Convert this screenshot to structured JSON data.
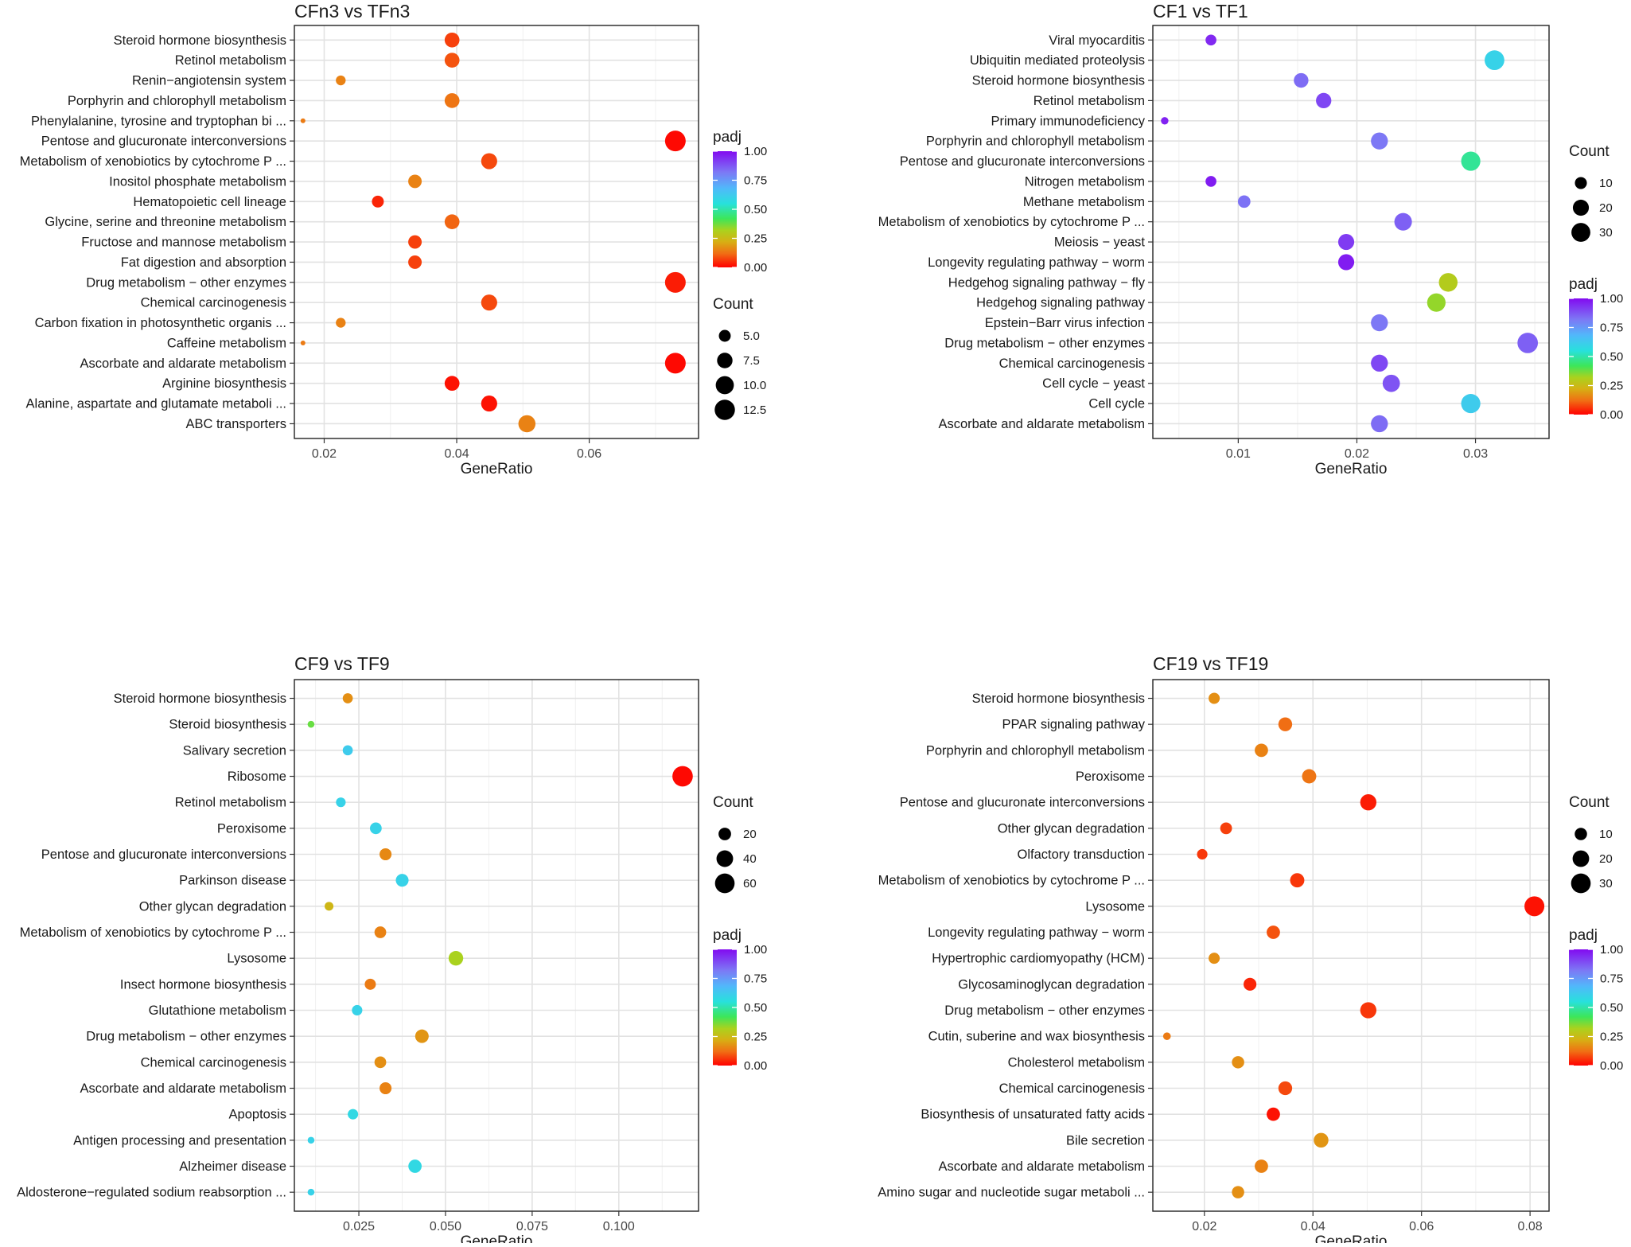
{
  "chart_data": [
    {
      "type": "scatter",
      "title": "CFn3 vs TFn3",
      "xlabel": "GeneRatio",
      "ylabel": "",
      "xlim": [
        0.0155,
        0.0765
      ],
      "xticks": [
        0.02,
        0.04,
        0.06
      ],
      "xtick_labels": [
        "0.02",
        "0.04",
        "0.06"
      ],
      "grid": true,
      "legend_order": [
        "color",
        "size"
      ],
      "size_legend": {
        "title": "Count",
        "values": [
          5.0,
          7.5,
          10.0,
          12.5
        ],
        "labels": [
          "5.0",
          "7.5",
          "10.0",
          "12.5"
        ],
        "domain": [
          3,
          13
        ]
      },
      "color_legend": {
        "title": "padj",
        "ticks": [
          1.0,
          0.75,
          0.5,
          0.25,
          0.0
        ],
        "labels": [
          "1.00",
          "0.75",
          "0.50",
          "0.25",
          "0.00"
        ]
      },
      "categories": [
        "Steroid hormone biosynthesis",
        "Retinol metabolism",
        "Renin−angiotensin system",
        "Porphyrin and chlorophyll metabolism",
        "Phenylalanine, tyrosine and tryptophan bi ...",
        "Pentose and glucuronate interconversions",
        "Metabolism of xenobiotics by cytochrome P ...",
        "Inositol phosphate metabolism",
        "Hematopoietic cell lineage",
        "Glycine, serine and threonine metabolism",
        "Fructose and mannose metabolism",
        "Fat digestion and absorption",
        "Drug metabolism − other enzymes",
        "Chemical carcinogenesis",
        "Carbon fixation in photosynthetic organis ...",
        "Caffeine metabolism",
        "Ascorbate and aldarate metabolism",
        "Arginine biosynthesis",
        "Alanine, aspartate and glutamate metaboli ...",
        "ABC transporters"
      ],
      "points": [
        {
          "label": "Steroid hormone biosynthesis",
          "x": 0.0393,
          "count": 7,
          "padj": 0.07
        },
        {
          "label": "Retinol metabolism",
          "x": 0.0393,
          "count": 7,
          "padj": 0.09
        },
        {
          "label": "Renin−angiotensin system",
          "x": 0.0225,
          "count": 4,
          "padj": 0.15
        },
        {
          "label": "Porphyrin and chlorophyll metabolism",
          "x": 0.0393,
          "count": 7,
          "padj": 0.13
        },
        {
          "label": "Phenylalanine, tyrosine and tryptophan bi ...",
          "x": 0.0168,
          "count": 3,
          "padj": 0.14
        },
        {
          "label": "Pentose and glucuronate interconversions",
          "x": 0.073,
          "count": 13,
          "padj": 0.01
        },
        {
          "label": "Metabolism of xenobiotics by cytochrome P ...",
          "x": 0.0449,
          "count": 8,
          "padj": 0.08
        },
        {
          "label": "Inositol phosphate metabolism",
          "x": 0.0337,
          "count": 6,
          "padj": 0.15
        },
        {
          "label": "Hematopoietic cell lineage",
          "x": 0.0281,
          "count": 5,
          "padj": 0.04
        },
        {
          "label": "Glycine, serine and threonine metabolism",
          "x": 0.0393,
          "count": 7,
          "padj": 0.11
        },
        {
          "label": "Fructose and mannose metabolism",
          "x": 0.0337,
          "count": 6,
          "padj": 0.07
        },
        {
          "label": "Fat digestion and absorption",
          "x": 0.0337,
          "count": 6,
          "padj": 0.07
        },
        {
          "label": "Drug metabolism − other enzymes",
          "x": 0.073,
          "count": 13,
          "padj": 0.03
        },
        {
          "label": "Chemical carcinogenesis",
          "x": 0.0449,
          "count": 8,
          "padj": 0.08
        },
        {
          "label": "Carbon fixation in photosynthetic organis ...",
          "x": 0.0225,
          "count": 4,
          "padj": 0.15
        },
        {
          "label": "Caffeine metabolism",
          "x": 0.0168,
          "count": 3,
          "padj": 0.14
        },
        {
          "label": "Ascorbate and aldarate metabolism",
          "x": 0.073,
          "count": 13,
          "padj": 0.01
        },
        {
          "label": "Arginine biosynthesis",
          "x": 0.0393,
          "count": 7,
          "padj": 0.02
        },
        {
          "label": "Alanine, aspartate and glutamate metaboli ...",
          "x": 0.0449,
          "count": 8,
          "padj": 0.02
        },
        {
          "label": "ABC transporters",
          "x": 0.0506,
          "count": 9,
          "padj": 0.15
        }
      ]
    },
    {
      "type": "scatter",
      "title": "CF1 vs TF1",
      "xlabel": "GeneRatio",
      "ylabel": "",
      "xlim": [
        0.0028,
        0.0362
      ],
      "xticks": [
        0.01,
        0.02,
        0.03
      ],
      "xtick_labels": [
        "0.01",
        "0.02",
        "0.03"
      ],
      "grid": true,
      "legend_order": [
        "size",
        "color"
      ],
      "size_legend": {
        "title": "Count",
        "values": [
          10,
          20,
          30
        ],
        "labels": [
          "10",
          "20",
          "30"
        ],
        "domain": [
          3,
          37
        ]
      },
      "color_legend": {
        "title": "padj",
        "ticks": [
          1.0,
          0.75,
          0.5,
          0.25,
          0.0
        ],
        "labels": [
          "1.00",
          "0.75",
          "0.50",
          "0.25",
          "0.00"
        ]
      },
      "categories": [
        "Viral myocarditis",
        "Ubiquitin mediated proteolysis",
        "Steroid hormone biosynthesis",
        "Retinol metabolism",
        "Primary immunodeficiency",
        "Porphyrin and chlorophyll metabolism",
        "Pentose and glucuronate interconversions",
        "Nitrogen metabolism",
        "Methane metabolism",
        "Metabolism of xenobiotics by cytochrome P ...",
        "Meiosis − yeast",
        "Longevity regulating pathway − worm",
        "Hedgehog signaling pathway − fly",
        "Hedgehog signaling pathway",
        "Epstein−Barr virus infection",
        "Drug metabolism − other enzymes",
        "Chemical carcinogenesis",
        "Cell cycle − yeast",
        "Cell cycle",
        "Ascorbate and aldarate metabolism"
      ],
      "points": [
        {
          "label": "Viral myocarditis",
          "x": 0.0077,
          "count": 8,
          "padj": 0.95
        },
        {
          "label": "Ubiquitin mediated proteolysis",
          "x": 0.0316,
          "count": 33,
          "padj": 0.6
        },
        {
          "label": "Steroid hormone biosynthesis",
          "x": 0.0153,
          "count": 16,
          "padj": 0.84
        },
        {
          "label": "Retinol metabolism",
          "x": 0.0172,
          "count": 18,
          "padj": 0.9
        },
        {
          "label": "Primary immunodeficiency",
          "x": 0.0038,
          "count": 4,
          "padj": 0.96
        },
        {
          "label": "Porphyrin and chlorophyll metabolism",
          "x": 0.0219,
          "count": 23,
          "padj": 0.82
        },
        {
          "label": "Pentose and glucuronate interconversions",
          "x": 0.0296,
          "count": 31,
          "padj": 0.48
        },
        {
          "label": "Nitrogen metabolism",
          "x": 0.0077,
          "count": 8,
          "padj": 0.97
        },
        {
          "label": "Methane metabolism",
          "x": 0.0105,
          "count": 11,
          "padj": 0.83
        },
        {
          "label": "Metabolism of xenobiotics by cytochrome P ...",
          "x": 0.0239,
          "count": 25,
          "padj": 0.86
        },
        {
          "label": "Meiosis − yeast",
          "x": 0.0191,
          "count": 20,
          "padj": 0.92
        },
        {
          "label": "Longevity regulating pathway − worm",
          "x": 0.0191,
          "count": 20,
          "padj": 0.97
        },
        {
          "label": "Hedgehog signaling pathway − fly",
          "x": 0.0277,
          "count": 29,
          "padj": 0.3
        },
        {
          "label": "Hedgehog signaling pathway",
          "x": 0.0267,
          "count": 28,
          "padj": 0.34
        },
        {
          "label": "Epstein−Barr virus infection",
          "x": 0.0219,
          "count": 23,
          "padj": 0.82
        },
        {
          "label": "Drug metabolism − other enzymes",
          "x": 0.0344,
          "count": 36,
          "padj": 0.86
        },
        {
          "label": "Chemical carcinogenesis",
          "x": 0.0219,
          "count": 23,
          "padj": 0.9
        },
        {
          "label": "Cell cycle − yeast",
          "x": 0.0229,
          "count": 24,
          "padj": 0.88
        },
        {
          "label": "Cell cycle",
          "x": 0.0296,
          "count": 31,
          "padj": 0.62
        },
        {
          "label": "Ascorbate and aldarate metabolism",
          "x": 0.0219,
          "count": 23,
          "padj": 0.84
        }
      ]
    },
    {
      "type": "scatter",
      "title": "CF9 vs TF9",
      "xlabel": "GeneRatio",
      "ylabel": "",
      "xlim": [
        0.0064,
        0.123
      ],
      "xticks": [
        0.025,
        0.05,
        0.075,
        0.1
      ],
      "xtick_labels": [
        "0.025",
        "0.050",
        "0.075",
        "0.100"
      ],
      "grid": true,
      "legend_order": [
        "size",
        "color"
      ],
      "size_legend": {
        "title": "Count",
        "values": [
          20,
          40,
          60
        ],
        "labels": [
          "20",
          "40",
          "60"
        ],
        "domain": [
          5,
          68
        ]
      },
      "color_legend": {
        "title": "padj",
        "ticks": [
          1.0,
          0.75,
          0.5,
          0.25,
          0.0
        ],
        "labels": [
          "1.00",
          "0.75",
          "0.50",
          "0.25",
          "0.00"
        ]
      },
      "categories": [
        "Steroid hormone biosynthesis",
        "Steroid biosynthesis",
        "Salivary secretion",
        "Ribosome",
        "Retinol metabolism",
        "Peroxisome",
        "Pentose and glucuronate interconversions",
        "Parkinson disease",
        "Other glycan degradation",
        "Metabolism of xenobiotics by cytochrome P ...",
        "Lysosome",
        "Insect hormone biosynthesis",
        "Glutathione metabolism",
        "Drug metabolism − other enzymes",
        "Chemical carcinogenesis",
        "Ascorbate and aldarate metabolism",
        "Apoptosis",
        "Antigen processing and presentation",
        "Alzheimer disease",
        "Aldosterone−regulated sodium reabsorption ..."
      ],
      "points": [
        {
          "label": "Steroid hormone biosynthesis",
          "x": 0.0218,
          "count": 12,
          "padj": 0.17
        },
        {
          "label": "Steroid biosynthesis",
          "x": 0.0112,
          "count": 6,
          "padj": 0.38
        },
        {
          "label": "Salivary secretion",
          "x": 0.0218,
          "count": 12,
          "padj": 0.62
        },
        {
          "label": "Ribosome",
          "x": 0.1184,
          "count": 66,
          "padj": 0.01
        },
        {
          "label": "Retinol metabolism",
          "x": 0.0198,
          "count": 11,
          "padj": 0.6
        },
        {
          "label": "Peroxisome",
          "x": 0.0299,
          "count": 17,
          "padj": 0.6
        },
        {
          "label": "Pentose and glucuronate interconversions",
          "x": 0.0327,
          "count": 18,
          "padj": 0.16
        },
        {
          "label": "Parkinson disease",
          "x": 0.0375,
          "count": 21,
          "padj": 0.6
        },
        {
          "label": "Other glycan degradation",
          "x": 0.0164,
          "count": 9,
          "padj": 0.24
        },
        {
          "label": "Metabolism of xenobiotics by cytochrome P ...",
          "x": 0.0312,
          "count": 17,
          "padj": 0.15
        },
        {
          "label": "Lysosome",
          "x": 0.053,
          "count": 29,
          "padj": 0.32
        },
        {
          "label": "Insect hormone biosynthesis",
          "x": 0.0283,
          "count": 15,
          "padj": 0.14
        },
        {
          "label": "Glutathione metabolism",
          "x": 0.0245,
          "count": 13,
          "padj": 0.6
        },
        {
          "label": "Drug metabolism − other enzymes",
          "x": 0.0432,
          "count": 24,
          "padj": 0.18
        },
        {
          "label": "Chemical carcinogenesis",
          "x": 0.0312,
          "count": 17,
          "padj": 0.17
        },
        {
          "label": "Ascorbate and aldarate metabolism",
          "x": 0.0327,
          "count": 18,
          "padj": 0.15
        },
        {
          "label": "Apoptosis",
          "x": 0.0233,
          "count": 13,
          "padj": 0.58
        },
        {
          "label": "Antigen processing and presentation",
          "x": 0.0112,
          "count": 6,
          "padj": 0.6
        },
        {
          "label": "Alzheimer disease",
          "x": 0.0412,
          "count": 23,
          "padj": 0.58
        },
        {
          "label": "Aldosterone−regulated sodium reabsorption ...",
          "x": 0.0112,
          "count": 6,
          "padj": 0.6
        }
      ]
    },
    {
      "type": "scatter",
      "title": "CF19 vs TF19",
      "xlabel": "GeneRatio",
      "ylabel": "",
      "xlim": [
        0.0105,
        0.0835
      ],
      "xticks": [
        0.02,
        0.04,
        0.06,
        0.08
      ],
      "xtick_labels": [
        "0.02",
        "0.04",
        "0.06",
        "0.08"
      ],
      "grid": true,
      "legend_order": [
        "size",
        "color"
      ],
      "size_legend": {
        "title": "Count",
        "values": [
          10,
          20,
          30
        ],
        "labels": [
          "10",
          "20",
          "30"
        ],
        "domain": [
          3,
          34
        ]
      },
      "color_legend": {
        "title": "padj",
        "ticks": [
          1.0,
          0.75,
          0.5,
          0.25,
          0.0
        ],
        "labels": [
          "1.00",
          "0.75",
          "0.50",
          "0.25",
          "0.00"
        ]
      },
      "categories": [
        "Steroid hormone biosynthesis",
        "PPAR signaling pathway",
        "Porphyrin and chlorophyll metabolism",
        "Peroxisome",
        "Pentose and glucuronate interconversions",
        "Other glycan degradation",
        "Olfactory transduction",
        "Metabolism of xenobiotics by cytochrome P ...",
        "Lysosome",
        "Longevity regulating pathway − worm",
        "Hypertrophic cardiomyopathy (HCM)",
        "Glycosaminoglycan degradation",
        "Drug metabolism − other enzymes",
        "Cutin, suberine and wax biosynthesis",
        "Cholesterol metabolism",
        "Chemical carcinogenesis",
        "Biosynthesis of unsaturated fatty acids",
        "Bile secretion",
        "Ascorbate and aldarate metabolism",
        "Amino sugar and nucleotide sugar metaboli ..."
      ],
      "points": [
        {
          "label": "Steroid hormone biosynthesis",
          "x": 0.0218,
          "count": 8,
          "padj": 0.17
        },
        {
          "label": "PPAR signaling pathway",
          "x": 0.0349,
          "count": 13,
          "padj": 0.12
        },
        {
          "label": "Porphyrin and chlorophyll metabolism",
          "x": 0.0305,
          "count": 12,
          "padj": 0.15
        },
        {
          "label": "Peroxisome",
          "x": 0.0393,
          "count": 14,
          "padj": 0.13
        },
        {
          "label": "Pentose and glucuronate interconversions",
          "x": 0.0502,
          "count": 19,
          "padj": 0.03
        },
        {
          "label": "Other glycan degradation",
          "x": 0.024,
          "count": 9,
          "padj": 0.07
        },
        {
          "label": "Olfactory transduction",
          "x": 0.0196,
          "count": 7,
          "padj": 0.06
        },
        {
          "label": "Metabolism of xenobiotics by cytochrome P ...",
          "x": 0.0371,
          "count": 14,
          "padj": 0.06
        },
        {
          "label": "Lysosome",
          "x": 0.0808,
          "count": 31,
          "padj": 0.02
        },
        {
          "label": "Longevity regulating pathway − worm",
          "x": 0.0327,
          "count": 12,
          "padj": 0.09
        },
        {
          "label": "Hypertrophic cardiomyopathy (HCM)",
          "x": 0.0218,
          "count": 8,
          "padj": 0.17
        },
        {
          "label": "Glycosaminoglycan degradation",
          "x": 0.0284,
          "count": 11,
          "padj": 0.04
        },
        {
          "label": "Drug metabolism − other enzymes",
          "x": 0.0502,
          "count": 19,
          "padj": 0.06
        },
        {
          "label": "Cutin, suberine and wax biosynthesis",
          "x": 0.0131,
          "count": 4,
          "padj": 0.14
        },
        {
          "label": "Cholesterol metabolism",
          "x": 0.0262,
          "count": 10,
          "padj": 0.17
        },
        {
          "label": "Chemical carcinogenesis",
          "x": 0.0349,
          "count": 13,
          "padj": 0.08
        },
        {
          "label": "Biosynthesis of unsaturated fatty acids",
          "x": 0.0327,
          "count": 12,
          "padj": 0.02
        },
        {
          "label": "Bile secretion",
          "x": 0.0415,
          "count": 15,
          "padj": 0.18
        },
        {
          "label": "Ascorbate and aldarate metabolism",
          "x": 0.0305,
          "count": 12,
          "padj": 0.15
        },
        {
          "label": "Amino sugar and nucleotide sugar metaboli ...",
          "x": 0.0262,
          "count": 10,
          "padj": 0.17
        }
      ]
    }
  ]
}
